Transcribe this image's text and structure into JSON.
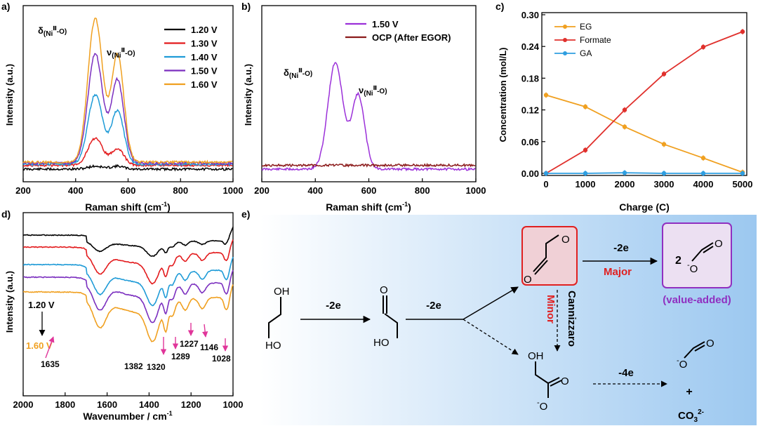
{
  "panels": {
    "a": {
      "label": "a)",
      "xlabel": "Raman shift (cm",
      "xlabel_sup": "-1",
      "xlabel_end": ")",
      "ylabel": "Intensity (a.u.)",
      "peak1": {
        "pre": "δ",
        "sub_pre": "(Ni",
        "sup": "Ⅲ",
        "sub_post": "-O)"
      },
      "peak2": {
        "pre": "ν",
        "sub_pre": "(Ni",
        "sup": "Ⅲ",
        "sub_post": "-O)"
      }
    },
    "b": {
      "label": "b)",
      "xlabel": "Raman shift (cm",
      "xlabel_sup": "-1",
      "xlabel_end": ")",
      "ylabel": "Intensity (a.u.)",
      "peak1": {
        "pre": "δ",
        "sub_pre": "(Ni",
        "sup": "Ⅲ",
        "sub_post": "-O)"
      },
      "peak2": {
        "pre": "ν",
        "sub_pre": "(Ni",
        "sup": "Ⅲ",
        "sub_post": "-O)"
      }
    },
    "c": {
      "label": "c)"
    },
    "d": {
      "label": "d)",
      "xlabel": "Wavenumber / cm",
      "xlabel_sup": "-1",
      "ylabel": "Intensity (a.u.)",
      "arrow_top": "1.20 V",
      "arrow_bottom": "1.60 V"
    },
    "e": {
      "label": "e)"
    }
  },
  "chart_data": [
    {
      "panel": "a",
      "type": "line",
      "xlabel": "Raman shift (cm-1)",
      "ylabel": "Intensity (a.u.)",
      "xlim": [
        200,
        1000
      ],
      "xticks": [
        "200",
        "400",
        "600",
        "800",
        "1000"
      ],
      "peaks_cm1": [
        475,
        560
      ],
      "series": [
        {
          "name": "1.20 V",
          "color": "#000000",
          "peak_heights": [
            0.02,
            0.02
          ]
        },
        {
          "name": "1.30 V",
          "color": "#e31a1c",
          "peak_heights": [
            0.18,
            0.11
          ]
        },
        {
          "name": "1.40 V",
          "color": "#1f9bd7",
          "peak_heights": [
            0.47,
            0.36
          ]
        },
        {
          "name": "1.50 V",
          "color": "#7b2fbf",
          "peak_heights": [
            0.74,
            0.56
          ]
        },
        {
          "name": "1.60 V",
          "color": "#f0a020",
          "peak_heights": [
            0.97,
            0.72
          ]
        }
      ]
    },
    {
      "panel": "b",
      "type": "line",
      "xlabel": "Raman shift (cm-1)",
      "ylabel": "Intensity (a.u.)",
      "xlim": [
        200,
        1000
      ],
      "xticks": [
        "200",
        "400",
        "600",
        "800",
        "1000"
      ],
      "peaks_cm1": [
        475,
        560
      ],
      "series": [
        {
          "name": "1.50 V",
          "color": "#9b30d9",
          "peak_heights": [
            0.72,
            0.5
          ]
        },
        {
          "name": "OCP (After EGOR)",
          "color": "#8b1a1a",
          "peak_heights": [
            0.0,
            0.0
          ]
        }
      ]
    },
    {
      "panel": "c",
      "type": "line",
      "xlabel": "Charge (C)",
      "ylabel": "Concentration (mol/L)",
      "xlim": [
        0,
        5000
      ],
      "ylim": [
        0,
        0.3
      ],
      "xticks": [
        "0",
        "1000",
        "2000",
        "3000",
        "4000",
        "5000"
      ],
      "yticks": [
        "0.00",
        "0.06",
        "0.12",
        "0.18",
        "0.24",
        "0.30"
      ],
      "x": [
        0,
        1000,
        2000,
        3000,
        4000,
        5000
      ],
      "series": [
        {
          "name": "EG",
          "color": "#f0a020",
          "values": [
            0.148,
            0.126,
            0.088,
            0.055,
            0.029,
            0.002
          ]
        },
        {
          "name": "Formate",
          "color": "#e0302c",
          "values": [
            0.0,
            0.044,
            0.12,
            0.188,
            0.239,
            0.268
          ]
        },
        {
          "name": "GA",
          "color": "#2f9ee0",
          "values": [
            0.0,
            0.0,
            0.001,
            0.0,
            0.0,
            0.0
          ]
        }
      ]
    },
    {
      "panel": "d",
      "type": "line",
      "xlabel": "Wavenumber / cm-1",
      "ylabel": "Intensity (a.u.)",
      "xlim": [
        2000,
        1000
      ],
      "xticks": [
        "2000",
        "1800",
        "1600",
        "1400",
        "1200",
        "1000"
      ],
      "series": [
        {
          "name": "1.20 V",
          "color": "#000000"
        },
        {
          "name": "1.30 V",
          "color": "#e31a1c"
        },
        {
          "name": "1.40 V",
          "color": "#1f9bd7"
        },
        {
          "name": "1.50 V",
          "color": "#7b2fbf"
        },
        {
          "name": "1.60 V",
          "color": "#f0a020"
        }
      ],
      "annotations": [
        "1635",
        "1382",
        "1320",
        "1289",
        "1227",
        "1146",
        "1028"
      ]
    }
  ],
  "scheme": {
    "step1": "-2e",
    "step2": "-2e",
    "major_step": "-2e",
    "major_label": "Major",
    "minor_label": "Minor",
    "cannizzaro": "Cannizzaro",
    "step_minor": "-4e",
    "product_coeff": "2",
    "value_added": "(value-added)",
    "plus": "+",
    "carbonate": "CO",
    "carbonate_sub": "3",
    "carbonate_sup": "2-",
    "atoms": {
      "O": "O",
      "OH": "OH",
      "HO": "HO",
      "minus": "-"
    }
  }
}
